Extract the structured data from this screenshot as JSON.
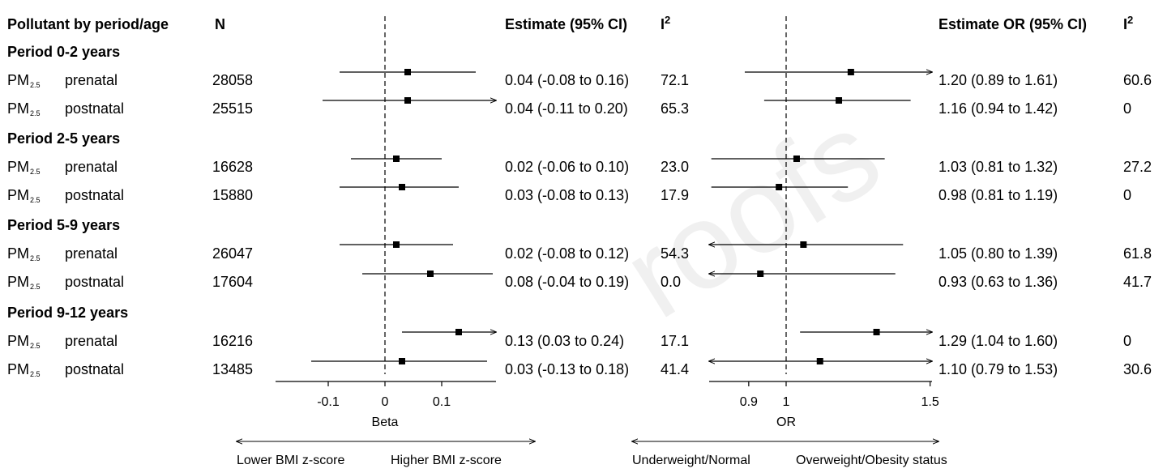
{
  "headers": {
    "pollutant": "Pollutant by period/age",
    "n": "N",
    "estimate_beta": "Estimate (95% CI)",
    "i2_beta": "I",
    "estimate_or": "Estimate OR (95% CI)",
    "i2_or": "I",
    "superscript": "2"
  },
  "pollutant_name": "PM",
  "pollutant_subscript": "2.5",
  "groups": [
    {
      "title": "Period 0-2 years",
      "rows": [
        {
          "exposure": "prenatal",
          "n": "28058",
          "beta_text": "0.04 (-0.08 to 0.16)",
          "beta_i2": "72.1",
          "or_text": "1.20 (0.89 to 1.61)",
          "or_i2": "60.6"
        },
        {
          "exposure": "postnatal",
          "n": "25515",
          "beta_text": "0.04 (-0.11 to 0.20)",
          "beta_i2": "65.3",
          "or_text": "1.16 (0.94 to 1.42)",
          "or_i2": "0"
        }
      ]
    },
    {
      "title": "Period 2-5 years",
      "rows": [
        {
          "exposure": "prenatal",
          "n": "16628",
          "beta_text": "0.02 (-0.06 to 0.10)",
          "beta_i2": "23.0",
          "or_text": "1.03 (0.81 to 1.32)",
          "or_i2": "27.2"
        },
        {
          "exposure": "postnatal",
          "n": "15880",
          "beta_text": "0.03 (-0.08 to 0.13)",
          "beta_i2": "17.9",
          "or_text": "0.98 (0.81 to 1.19)",
          "or_i2": "0"
        }
      ]
    },
    {
      "title": "Period 5-9 years",
      "rows": [
        {
          "exposure": "prenatal",
          "n": "26047",
          "beta_text": "0.02 (-0.08 to 0.12)",
          "beta_i2": "54.3",
          "or_text": "1.05 (0.80 to 1.39)",
          "or_i2": "61.8"
        },
        {
          "exposure": "postnatal",
          "n": "17604",
          "beta_text": "0.08 (-0.04 to 0.19)",
          "beta_i2": "0.0",
          "or_text": "0.93 (0.63 to 1.36)",
          "or_i2": "41.7"
        }
      ]
    },
    {
      "title": "Period 9-12 years",
      "rows": [
        {
          "exposure": "prenatal",
          "n": "16216",
          "beta_text": "0.13 (0.03 to 0.24)",
          "beta_i2": "17.1",
          "or_text": "1.29 (1.04 to 1.60)",
          "or_i2": "0"
        },
        {
          "exposure": "postnatal",
          "n": "13485",
          "beta_text": "0.03 (-0.13 to 0.18)",
          "beta_i2": "41.4",
          "or_text": "1.10 (0.79 to 1.53)",
          "or_i2": "30.6"
        }
      ]
    }
  ],
  "chart_data": [
    {
      "type": "forest",
      "xlabel": "Beta",
      "ticks": [
        -0.1,
        0,
        0.1
      ],
      "tick_labels": [
        "-0.1",
        "0",
        "0.1"
      ],
      "reference_line": 0,
      "xlim": [
        -0.19,
        0.19
      ],
      "direction_labels": {
        "left": "Lower BMI z-score",
        "right": "Higher BMI z-score"
      },
      "points": [
        {
          "est": 0.04,
          "lo": -0.08,
          "hi": 0.16
        },
        {
          "est": 0.04,
          "lo": -0.11,
          "hi": 0.2
        },
        {
          "est": 0.02,
          "lo": -0.06,
          "hi": 0.1
        },
        {
          "est": 0.03,
          "lo": -0.08,
          "hi": 0.13
        },
        {
          "est": 0.02,
          "lo": -0.08,
          "hi": 0.12
        },
        {
          "est": 0.08,
          "lo": -0.04,
          "hi": 0.19
        },
        {
          "est": 0.13,
          "lo": 0.03,
          "hi": 0.24
        },
        {
          "est": 0.03,
          "lo": -0.13,
          "hi": 0.18
        }
      ]
    },
    {
      "type": "forest",
      "xlabel": "OR",
      "ticks": [
        0.9,
        1,
        1.5
      ],
      "tick_labels": [
        "0.9",
        "1",
        "1.5"
      ],
      "reference_line": 1,
      "xlim": [
        0.805,
        1.5
      ],
      "log_scale": true,
      "direction_labels": {
        "left": "Underweight/Normal",
        "right": "Overweight/Obesity status"
      },
      "points": [
        {
          "est": 1.2,
          "lo": 0.89,
          "hi": 1.61
        },
        {
          "est": 1.16,
          "lo": 0.94,
          "hi": 1.42
        },
        {
          "est": 1.03,
          "lo": 0.81,
          "hi": 1.32
        },
        {
          "est": 0.98,
          "lo": 0.81,
          "hi": 1.19
        },
        {
          "est": 1.05,
          "lo": 0.8,
          "hi": 1.39
        },
        {
          "est": 0.93,
          "lo": 0.63,
          "hi": 1.36
        },
        {
          "est": 1.29,
          "lo": 1.04,
          "hi": 1.6
        },
        {
          "est": 1.1,
          "lo": 0.79,
          "hi": 1.53
        }
      ]
    }
  ],
  "watermark": "roofs"
}
